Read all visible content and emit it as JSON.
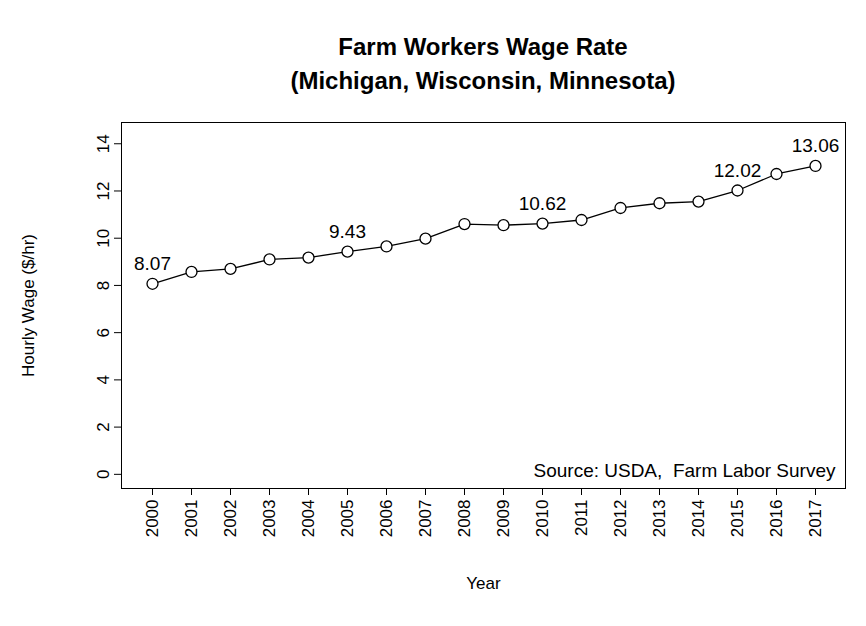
{
  "chart_data": {
    "type": "line",
    "title": "Farm Workers Wage Rate",
    "subtitle": "(Michigan, Wisconsin, Minnesota)",
    "x_label": "Year",
    "y_label": "Hourly Wage ($/hr)",
    "categories": [
      "2000",
      "2001",
      "2002",
      "2003",
      "2004",
      "2005",
      "2006",
      "2007",
      "2008",
      "2009",
      "2010",
      "2011",
      "2012",
      "2013",
      "2014",
      "2015",
      "2016",
      "2017"
    ],
    "values": [
      8.07,
      8.57,
      8.7,
      9.1,
      9.18,
      9.43,
      9.65,
      9.98,
      10.6,
      10.55,
      10.62,
      10.77,
      11.28,
      11.48,
      11.55,
      12.02,
      12.72,
      13.06
    ],
    "value_labels": [
      "8.07",
      null,
      null,
      null,
      null,
      "9.43",
      null,
      null,
      null,
      null,
      "10.62",
      null,
      null,
      null,
      null,
      "12.02",
      null,
      "13.06"
    ],
    "data_labels": true,
    "color": "#000000",
    "marker": "circle",
    "line_style": "solid",
    "ylim": [
      -0.6,
      14.9
    ],
    "yticks": [
      0,
      2,
      4,
      6,
      8,
      10,
      12,
      14
    ],
    "grid": false,
    "annotations": [
      {
        "text": "Source: USDA,  Farm Labor Survey"
      }
    ]
  }
}
